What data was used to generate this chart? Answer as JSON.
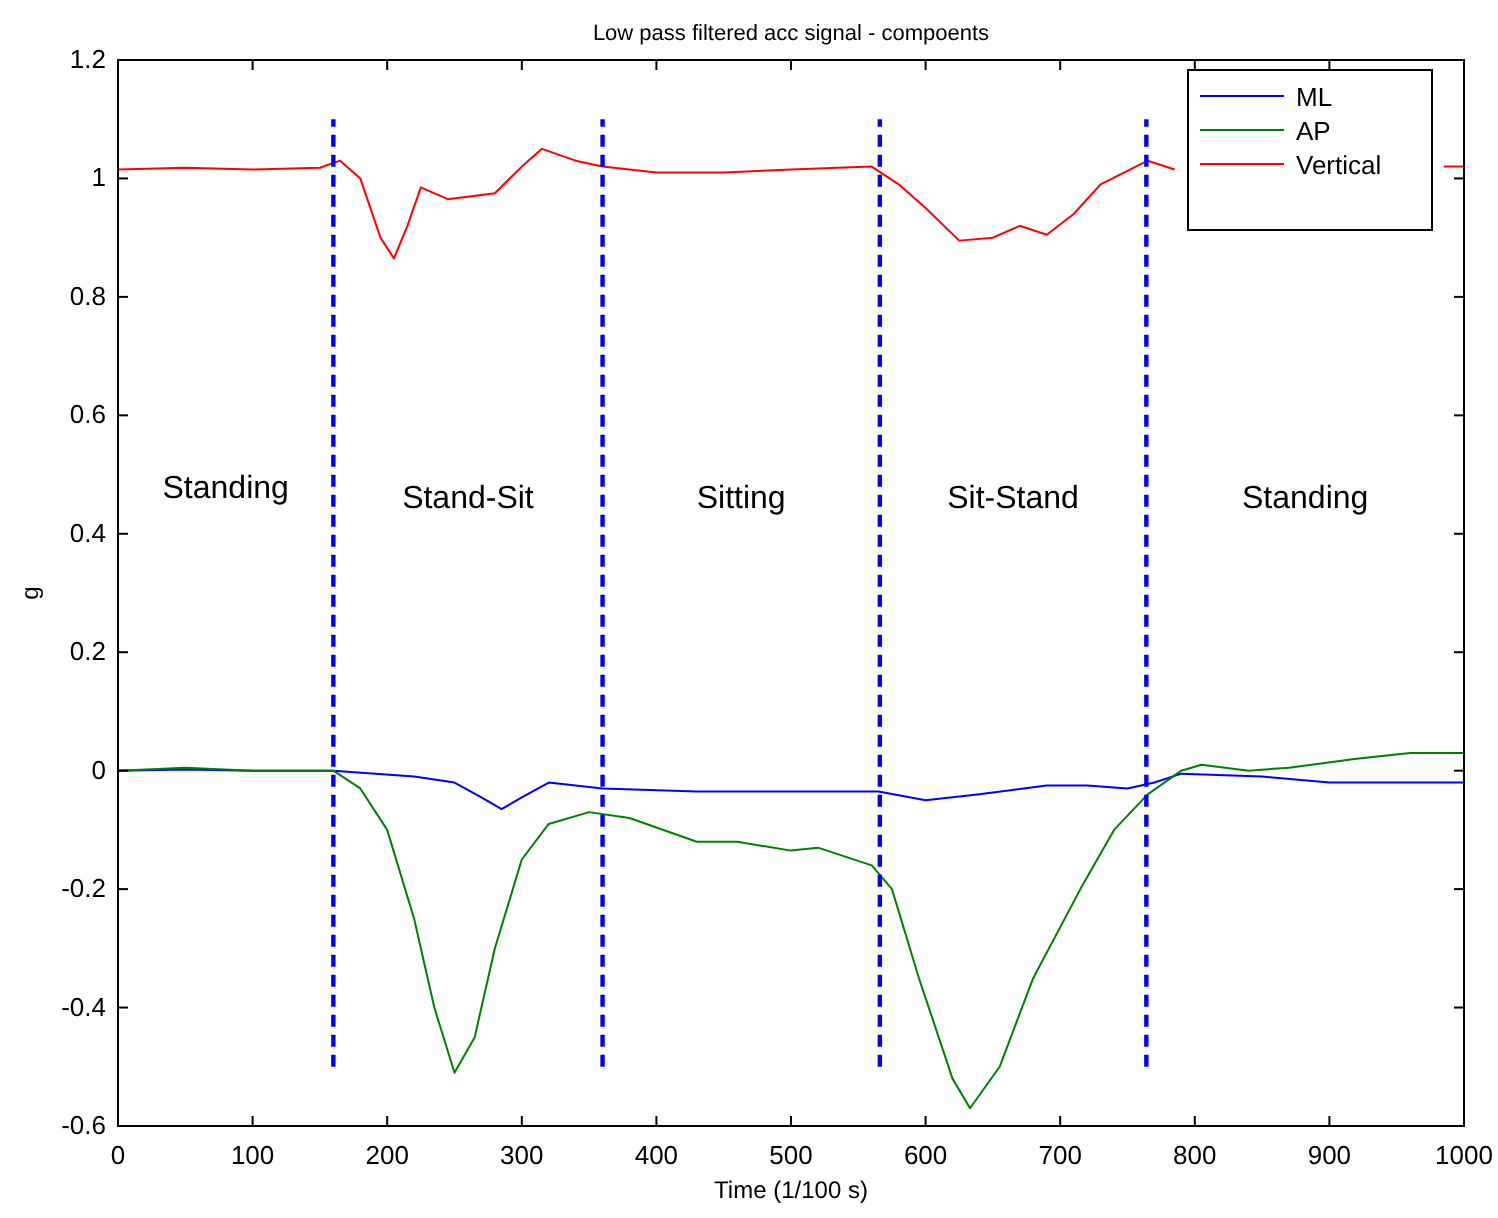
{
  "chart_data": {
    "type": "line",
    "title": "Low pass filtered acc signal - compoents",
    "xlabel": "Time (1/100 s)",
    "ylabel": "g",
    "xlim": [
      0,
      1000
    ],
    "xticks": [
      0,
      100,
      200,
      300,
      400,
      500,
      600,
      700,
      800,
      900,
      1000
    ],
    "ylim": [
      -0.6,
      1.2
    ],
    "yticks": [
      -0.6,
      -0.4,
      -0.2,
      0,
      0.2,
      0.4,
      0.6,
      0.8,
      1,
      1.2
    ],
    "grid": false,
    "legend": "top right",
    "marker": "none",
    "series": [
      {
        "name": "ML",
        "color": "#0000ff",
        "x": [
          0,
          50,
          100,
          160,
          220,
          250,
          270,
          285,
          300,
          320,
          360,
          430,
          500,
          565,
          600,
          640,
          690,
          720,
          750,
          770,
          790,
          850,
          900,
          1000
        ],
        "values": [
          0,
          0.002,
          0,
          0,
          -0.01,
          -0.02,
          -0.045,
          -0.065,
          -0.045,
          -0.02,
          -0.03,
          -0.035,
          -0.035,
          -0.035,
          -0.05,
          -0.04,
          -0.025,
          -0.025,
          -0.03,
          -0.02,
          -0.005,
          -0.01,
          -0.02,
          -0.02
        ]
      },
      {
        "name": "AP",
        "color": "#008000",
        "x": [
          0,
          50,
          100,
          160,
          180,
          200,
          220,
          235,
          250,
          265,
          280,
          300,
          320,
          350,
          380,
          430,
          460,
          500,
          520,
          560,
          575,
          595,
          620,
          633,
          655,
          680,
          715,
          740,
          765,
          790,
          805,
          840,
          870,
          920,
          960,
          1000
        ],
        "values": [
          0,
          0.005,
          0,
          0,
          -0.03,
          -0.1,
          -0.25,
          -0.4,
          -0.51,
          -0.45,
          -0.3,
          -0.15,
          -0.09,
          -0.07,
          -0.08,
          -0.12,
          -0.12,
          -0.135,
          -0.13,
          -0.16,
          -0.2,
          -0.35,
          -0.52,
          -0.57,
          -0.5,
          -0.35,
          -0.2,
          -0.1,
          -0.04,
          0,
          0.01,
          0,
          0.005,
          0.02,
          0.03,
          0.03
        ]
      },
      {
        "name": "Vertical",
        "color": "#ff0000",
        "x": [
          0,
          50,
          100,
          150,
          165,
          180,
          195,
          205,
          215,
          225,
          245,
          280,
          300,
          315,
          340,
          360,
          400,
          450,
          500,
          560,
          580,
          600,
          625,
          650,
          670,
          690,
          710,
          730,
          765,
          785,
          820,
          850,
          900,
          985,
          1000
        ],
        "values": [
          1.015,
          1.018,
          1.015,
          1.018,
          1.03,
          1.0,
          0.9,
          0.865,
          0.92,
          0.985,
          0.965,
          0.975,
          1.02,
          1.05,
          1.03,
          1.02,
          1.01,
          1.01,
          1.015,
          1.02,
          0.99,
          0.95,
          0.895,
          0.9,
          0.92,
          0.905,
          0.94,
          0.99,
          1.03,
          1.015,
          null,
          null,
          null,
          1.02,
          1.02
        ]
      },
      {
        "color": "#0000ff",
        "line_style": "dashed",
        "x": [
          160,
          160
        ],
        "values": [
          -0.5,
          1.1
        ]
      },
      {
        "color": "#0000ff",
        "line_style": "dashed",
        "x": [
          360,
          360
        ],
        "values": [
          -0.5,
          1.1
        ]
      },
      {
        "color": "#0000ff",
        "line_style": "dashed",
        "x": [
          566,
          566
        ],
        "values": [
          -0.5,
          1.1
        ]
      },
      {
        "color": "#0000ff",
        "line_style": "dashed",
        "x": [
          764,
          764
        ],
        "values": [
          -0.5,
          1.1
        ]
      }
    ],
    "annotations": [
      "Standing",
      "Stand-Sit",
      "Sitting",
      "Sit-Stand",
      "Standing"
    ]
  }
}
